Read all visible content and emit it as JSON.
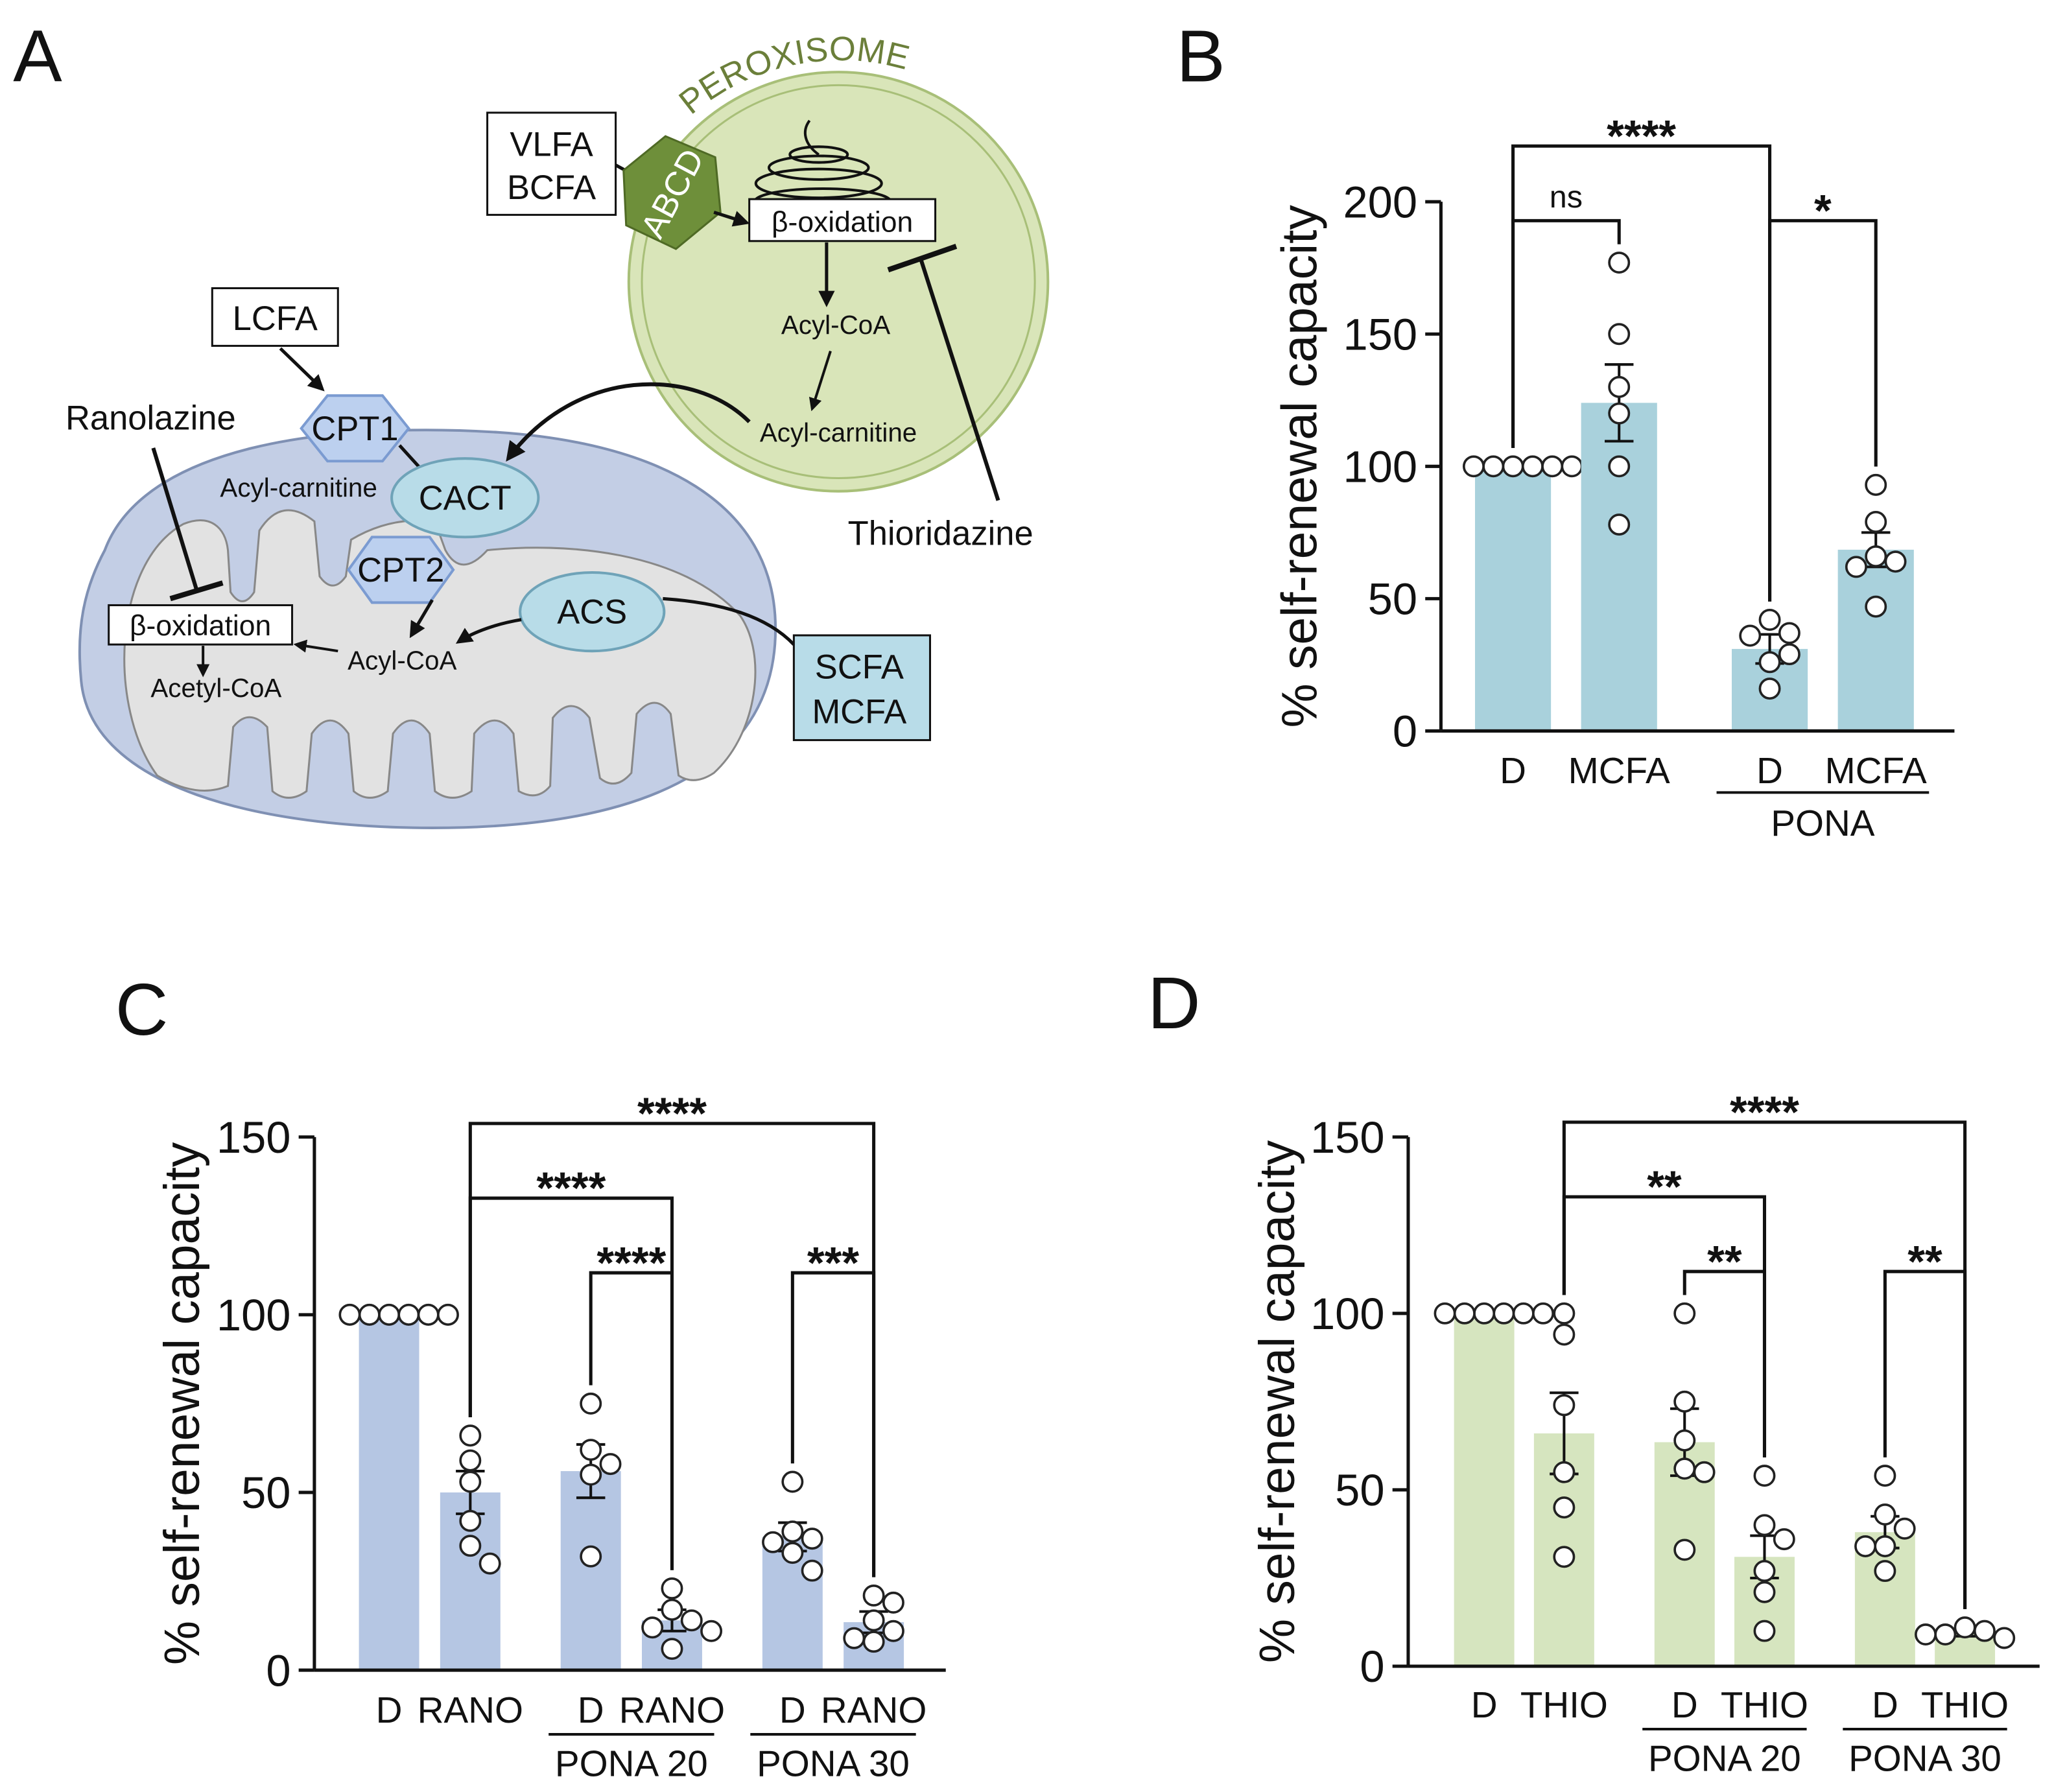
{
  "diagram": {
    "panel": "A",
    "peroxisome": "PEROXISOME",
    "vlfa_bcfa": [
      "VLFA",
      "BCFA"
    ],
    "abcd": "ABCD",
    "perox_beta_oxidation": "β-oxidation",
    "perox_acyl_coa": "Acyl-CoA",
    "perox_acyl_carnitine": "Acyl-carnitine",
    "thioridazine": "Thioridazine",
    "lcfa": "LCFA",
    "cpt1": "CPT1",
    "ranolazine": "Ranolazine",
    "mito_acyl_carnitine": "Acyl-carnitine",
    "cact": "CACT",
    "cpt2": "CPT2",
    "acs": "ACS",
    "mito_beta_oxidation": "β-oxidation",
    "mito_acyl_coa": "Acyl-CoA",
    "acetyl_coa": "Acetyl-CoA",
    "scfa_mcfa": [
      "SCFA",
      "MCFA"
    ]
  },
  "chart_data": [
    {
      "type": "bar",
      "panel": "B",
      "ylabel": "% self-renewal capacity",
      "ylim": [
        0,
        200
      ],
      "yticks": [
        0,
        50,
        100,
        150,
        200
      ],
      "categories": [
        "D",
        "MCFA",
        "D",
        "MCFA"
      ],
      "groups": [
        {
          "label": "PONA",
          "from": 2,
          "to": 3
        }
      ],
      "color": "#a9d1dc",
      "values": [
        100,
        124,
        31,
        68.5
      ],
      "errors": [
        0,
        14.5,
        5.5,
        6.5
      ],
      "points": [
        [
          100,
          100,
          100,
          100,
          100,
          100
        ],
        [
          177,
          150,
          130,
          120,
          100,
          78
        ],
        [
          42,
          37,
          36,
          26,
          16,
          29
        ],
        [
          93,
          79,
          66,
          64,
          62,
          47
        ]
      ],
      "comparisons": [
        {
          "from": 0,
          "to": 2,
          "label": "****"
        },
        {
          "from": 0,
          "to": 1,
          "label": "ns"
        },
        {
          "from": 2,
          "to": 3,
          "label": "*"
        }
      ]
    },
    {
      "type": "bar",
      "panel": "C",
      "ylabel": "% self-renewal capacity",
      "ylim": [
        0,
        150
      ],
      "yticks": [
        0,
        50,
        100,
        150
      ],
      "categories": [
        "D",
        "RANO",
        "D",
        "RANO",
        "D",
        "RANO"
      ],
      "groups": [
        {
          "label": "PONA 20",
          "from": 2,
          "to": 3
        },
        {
          "label": "PONA 30",
          "from": 4,
          "to": 5
        }
      ],
      "color": "#b5c6e3",
      "values": [
        100,
        50,
        56,
        14,
        37.5,
        13.5
      ],
      "errors": [
        0,
        6,
        7.5,
        3,
        4,
        3
      ],
      "points": [
        [
          100,
          100,
          100,
          100,
          100,
          100
        ],
        [
          66,
          59,
          53,
          42,
          35,
          30
        ],
        [
          75,
          62,
          58,
          55,
          32
        ],
        [
          23,
          17,
          14,
          12,
          6,
          11
        ],
        [
          53,
          39,
          37,
          36,
          33,
          28
        ],
        [
          21,
          19,
          14,
          11,
          9,
          8
        ]
      ],
      "comparisons": [
        {
          "from": 1,
          "to": 5,
          "label": "****"
        },
        {
          "from": 1,
          "to": 3,
          "label": "****"
        },
        {
          "from": 2,
          "to": 3,
          "label": "****"
        },
        {
          "from": 4,
          "to": 5,
          "label": "***"
        }
      ]
    },
    {
      "type": "bar",
      "panel": "D",
      "ylabel": "% self-renewal capacity",
      "ylim": [
        0,
        150
      ],
      "yticks": [
        0,
        50,
        100,
        150
      ],
      "categories": [
        "D",
        "THIO",
        "D",
        "THIO",
        "D",
        "THIO"
      ],
      "groups": [
        {
          "label": "PONA 20",
          "from": 2,
          "to": 3
        },
        {
          "label": "PONA 30",
          "from": 4,
          "to": 5
        }
      ],
      "color": "#d6e5bf",
      "values": [
        100,
        66,
        63.5,
        31,
        38,
        9.5
      ],
      "errors": [
        0,
        11.5,
        9.5,
        6,
        4.5,
        1
      ],
      "points": [
        [
          100,
          100,
          100,
          100,
          100,
          100
        ],
        [
          100,
          94,
          74,
          55,
          45,
          31
        ],
        [
          100,
          75,
          64,
          56,
          55,
          33
        ],
        [
          54,
          40,
          36,
          27,
          10,
          21
        ],
        [
          54,
          43,
          39,
          34,
          34,
          27
        ],
        [
          11,
          10,
          9,
          8,
          9
        ]
      ],
      "comparisons": [
        {
          "from": 1,
          "to": 5,
          "label": "****"
        },
        {
          "from": 1,
          "to": 3,
          "label": "**"
        },
        {
          "from": 2,
          "to": 3,
          "label": "**"
        },
        {
          "from": 4,
          "to": 5,
          "label": "**"
        }
      ]
    }
  ]
}
